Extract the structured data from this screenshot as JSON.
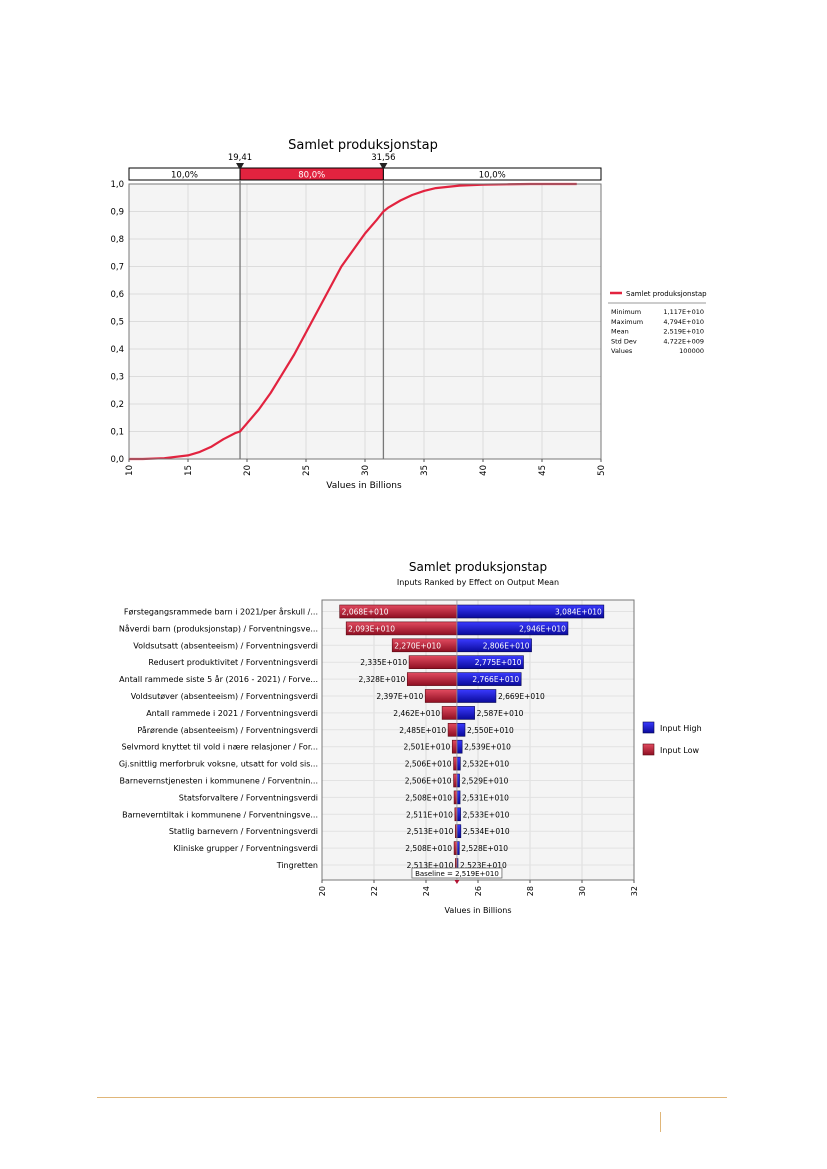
{
  "chart_data": [
    {
      "type": "line",
      "title": "Samlet produksjonstap",
      "xlabel": "Values in Billions",
      "ylabel": "",
      "xlim": [
        10,
        50
      ],
      "ylim": [
        0,
        1
      ],
      "x_ticks": [
        "10",
        "15",
        "20",
        "25",
        "30",
        "35",
        "40",
        "45",
        "50"
      ],
      "y_ticks": [
        "0,0",
        "0,1",
        "0,2",
        "0,3",
        "0,4",
        "0,5",
        "0,6",
        "0,7",
        "0,8",
        "0,9",
        "1,0"
      ],
      "grid": true,
      "color": "#e2233f",
      "series": [
        {
          "name": "Samlet produksjonstap",
          "x": [
            10,
            11.17,
            13,
            15,
            16,
            17,
            18,
            19,
            19.41,
            20,
            21,
            22,
            23,
            24,
            25,
            26,
            27,
            28,
            29,
            30,
            31,
            31.56,
            32,
            33,
            34,
            35,
            36,
            38,
            40,
            42,
            44,
            46,
            47.94
          ],
          "y": [
            0,
            0,
            0.003,
            0.013,
            0.026,
            0.045,
            0.072,
            0.094,
            0.1,
            0.13,
            0.18,
            0.24,
            0.31,
            0.38,
            0.46,
            0.54,
            0.62,
            0.7,
            0.76,
            0.82,
            0.87,
            0.9,
            0.915,
            0.94,
            0.96,
            0.975,
            0.985,
            0.994,
            0.998,
            0.999,
            1.0,
            1.0,
            1.0
          ]
        }
      ],
      "delimiters": {
        "left_value": "19,41",
        "right_value": "31,56",
        "left_x": 19.41,
        "right_x": 31.56,
        "band_left": "10,0%",
        "band_middle": "80,0%",
        "band_right": "10,0%"
      },
      "legend": {
        "position": "right",
        "series_label": "Samlet produksjonstap",
        "stats": [
          {
            "label": "Minimum",
            "value": "1,117E+010"
          },
          {
            "label": "Maximum",
            "value": "4,794E+010"
          },
          {
            "label": "Mean",
            "value": "2,519E+010"
          },
          {
            "label": "Std Dev",
            "value": "4,722E+009"
          },
          {
            "label": "Values",
            "value": "100000"
          }
        ]
      }
    },
    {
      "type": "bar",
      "subtype": "tornado",
      "title": "Samlet produksjonstap",
      "subtitle": "Inputs Ranked by Effect on Output Mean",
      "xlabel": "Values in Billions",
      "xlim": [
        20,
        32
      ],
      "x_ticks": [
        "20",
        "22",
        "24",
        "26",
        "28",
        "30",
        "32"
      ],
      "baseline": 25.19,
      "baseline_label": "Baseline = 2,519E+010",
      "grid": true,
      "legend": {
        "position": "right",
        "high_label": "Input High",
        "low_label": "Input Low",
        "high_color": "#1010d8",
        "low_color": "#c8203a"
      },
      "categories": [
        "Førstegangsrammede barn i 2021/per årskull /...",
        "Nåverdi barn (produksjonstap) / Forventningsve...",
        "Voldsutsatt (absenteeism) / Forventningsverdi",
        "Redusert produktivitet / Forventningsverdi",
        "Antall rammede siste 5 år (2016 - 2021) / Forve...",
        "Voldsutøver (absenteeism) / Forventningsverdi",
        "Antall rammede i 2021 / Forventningsverdi",
        "Pårørende (absenteeism) / Forventningsverdi",
        "Selvmord knyttet til vold i nære relasjoner / For...",
        "Gj.snittlig merforbruk voksne, utsatt for vold sis...",
        "Barnevernstjenesten i kommunene / Forventnin...",
        "Statsforvaltere / Forventningsverdi",
        "Barneverntiltak i kommunene / Forventningsve...",
        "Statlig barnevern / Forventningsverdi",
        "Kliniske grupper / Forventningsverdi",
        "Tingretten"
      ],
      "low_values": [
        20.68,
        20.93,
        22.7,
        23.35,
        23.28,
        23.97,
        24.62,
        24.85,
        25.01,
        25.06,
        25.06,
        25.08,
        25.11,
        25.13,
        25.08,
        25.13
      ],
      "high_values": [
        30.84,
        29.46,
        28.06,
        27.75,
        27.66,
        26.69,
        25.87,
        25.5,
        25.39,
        25.32,
        25.29,
        25.31,
        25.33,
        25.34,
        25.28,
        25.23
      ],
      "low_labels": [
        "2,068E+010",
        "2,093E+010",
        "2,270E+010",
        "2,335E+010",
        "2,328E+010",
        "2,397E+010",
        "2,462E+010",
        "2,485E+010",
        "2,501E+010",
        "2,506E+010",
        "2,506E+010",
        "2,508E+010",
        "2,511E+010",
        "2,513E+010",
        "2,508E+010",
        "2,513E+010"
      ],
      "high_labels": [
        "3,084E+010",
        "2,946E+010",
        "2,806E+010",
        "2,775E+010",
        "2,766E+010",
        "2,669E+010",
        "2,587E+010",
        "2,550E+010",
        "2,539E+010",
        "2,532E+010",
        "2,529E+010",
        "2,531E+010",
        "2,533E+010",
        "2,534E+010",
        "2,528E+010",
        "2,523E+010"
      ]
    }
  ]
}
